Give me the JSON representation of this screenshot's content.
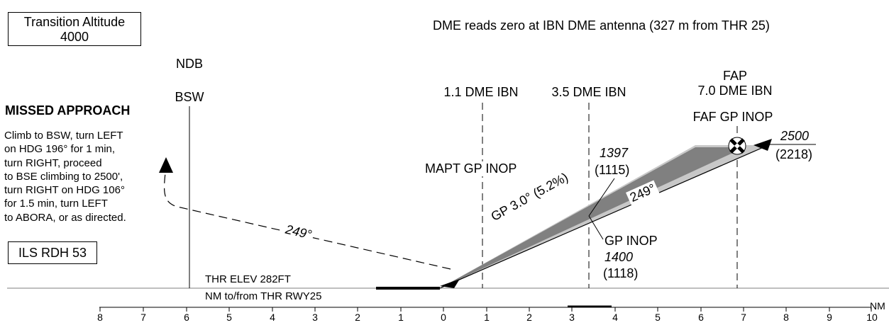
{
  "transition_altitude": {
    "line1": "Transition Altitude",
    "line2": "4000"
  },
  "dme_note": "DME reads zero at IBN DME antenna (327 m from THR 25)",
  "fixes": {
    "ndb_label": "NDB",
    "bsw_label": "BSW",
    "dme_1_1": "1.1 DME IBN",
    "dme_3_5": "3.5 DME IBN",
    "fap_label": "FAP",
    "dme_7_0": "7.0 DME IBN",
    "faf_gp_inop": "FAF GP INOP",
    "mapt_gp_inop": "MAPT GP INOP",
    "gp_inop": "GP INOP"
  },
  "missed_approach": {
    "title": "MISSED APPROACH",
    "lines": [
      "Climb to BSW, turn LEFT",
      "on HDG 196° for 1 min,",
      "turn RIGHT, proceed",
      "to BSE climbing to 2500',",
      "turn RIGHT on HDG 106°",
      "for 1.5 min, turn LEFT",
      "to ABORA, or as directed."
    ]
  },
  "ils_rdh": "ILS RDH 53",
  "altitudes": {
    "fap_alt": "2500",
    "fap_height": "(2218)",
    "dme35_alt": "1397",
    "dme35_height": "(1115)",
    "gp_inop_alt": "1400",
    "gp_inop_height": "(1118)"
  },
  "glidepath": "GP 3.0° (5.2%)",
  "track_inbound": "249°",
  "track_missed": "249°",
  "threshold": {
    "elev": "THR ELEV 282FT",
    "reference": "NM to/from THR RWY25"
  },
  "scale": {
    "unit": "NM",
    "ticks": [
      "8",
      "7",
      "6",
      "5",
      "4",
      "3",
      "2",
      "1",
      "0",
      "1",
      "2",
      "3",
      "4",
      "5",
      "6",
      "7",
      "8",
      "9",
      "10"
    ]
  },
  "colors": {
    "glideslope_fill": "#808080",
    "glideslope_halo": "#c8c8c8"
  }
}
